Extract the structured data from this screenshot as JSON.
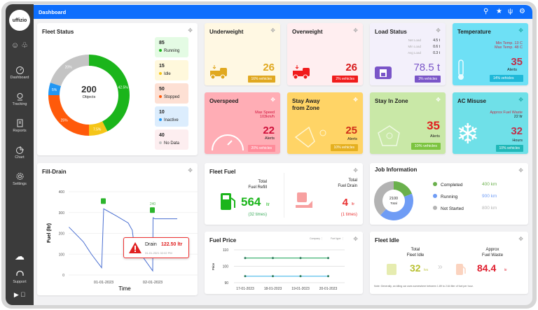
{
  "app": {
    "logo": "uffizio",
    "title": "Dashboard",
    "brand_color": "#0d6efd"
  },
  "sidebar": {
    "items": [
      {
        "label": "Dashboard",
        "icon": "speedometer-icon"
      },
      {
        "label": "Tracking",
        "icon": "location-pin-icon"
      },
      {
        "label": "Reports",
        "icon": "report-icon"
      },
      {
        "label": "Chart",
        "icon": "pie-chart-icon"
      },
      {
        "label": "Settings",
        "icon": "gear-icon"
      }
    ],
    "support": "Support"
  },
  "fleet_status": {
    "title": "Fleet Status",
    "total": "200",
    "total_label": "Objects",
    "items": [
      {
        "count": "85",
        "label": "Running",
        "pct": 42.5,
        "pct_label": "42.5%",
        "color": "#1bb51b",
        "bg": "#e4fbe4"
      },
      {
        "count": "15",
        "label": "Idle",
        "pct": 7.5,
        "pct_label": "7.5%",
        "color": "#f5c518",
        "bg": "#fff8dc"
      },
      {
        "count": "50",
        "label": "Stopped",
        "pct": 25,
        "pct_label": "25%",
        "color": "#ff5a0a",
        "bg": "#fde0d4"
      },
      {
        "count": "10",
        "label": "Inactive",
        "pct": 5,
        "pct_label": "5%",
        "color": "#2196f3",
        "bg": "#dcedfd"
      },
      {
        "count": "40",
        "label": "No Data",
        "pct": 20,
        "pct_label": "20%",
        "color": "#c4c4c4",
        "bg": "#fdeef0"
      }
    ]
  },
  "underweight": {
    "title": "Underweight",
    "value": "26",
    "badge": "16% vehicles"
  },
  "overweight": {
    "title": "Overweight",
    "value": "26",
    "badge": "2% vehicles"
  },
  "load_status": {
    "title": "Load Status",
    "rows": [
      {
        "label": "Net Load",
        "value": "4.5 t"
      },
      {
        "label": "Min Load",
        "value": "0.6 t"
      },
      {
        "label": "Avg Load",
        "value": "0.3 t"
      }
    ],
    "value": "78.5 t",
    "badge": "3% vehicles"
  },
  "temperature": {
    "title": "Temperature",
    "min": "Min Temp. 13 C",
    "max": "Max Temp. 48 C",
    "value": "35",
    "unit": "Alerts",
    "badge": "14% vehicles"
  },
  "overspeed": {
    "title": "Overspeed",
    "note1": "Max Speed",
    "note2": "103km/h",
    "value": "22",
    "unit": "Alerts",
    "badge": "20% vehicles"
  },
  "stay_away": {
    "title1": "Stay Away",
    "title2": "from Zone",
    "value": "25",
    "unit": "Alerts",
    "badge": "10% vehicles"
  },
  "stay_in": {
    "title": "Stay In Zone",
    "value": "35",
    "unit": "Alerts",
    "badge": "10% vehicles"
  },
  "ac_misuse": {
    "title": "AC Misuse",
    "note1": "Approx Fuel Waste",
    "note2": "22 ltr",
    "value": "32",
    "unit": "Hours",
    "badge": "10% vehicles"
  },
  "fleet_fuel": {
    "title": "Fleet Fuel",
    "refill_label1": "Total",
    "refill_label2": "Fuel Refill",
    "refill_value": "564",
    "refill_unit": "ltr",
    "refill_times": "(32 times)",
    "drain_label1": "Total",
    "drain_label2": "Fuel Drain",
    "drain_value": "4",
    "drain_unit": "ltr",
    "drain_times": "(1 times)"
  },
  "job_info": {
    "title": "Job Information",
    "total": "2100",
    "total_label": "Total",
    "items": [
      {
        "label": "Completed",
        "value": "400 km",
        "km": 400,
        "color": "#6ab04c"
      },
      {
        "label": "Running",
        "value": "900 km",
        "km": 900,
        "color": "#6f9cf5"
      },
      {
        "label": "Not Started",
        "value": "800 km",
        "km": 800,
        "color": "#b3b3b3"
      }
    ]
  },
  "fleet_idle": {
    "title": "Fleet Idle",
    "idle_label1": "Total",
    "idle_label2": "Fleet Idle",
    "idle_value": "32",
    "idle_unit": "hrs",
    "waste_label1": "Approx",
    "waste_label2": "Fuel Waste",
    "waste_value": "84.4",
    "waste_unit": "ltr",
    "note": "Note: Generally, an idling car uses somewhere between 1.89 to 2.64 liter of fuel per hour."
  },
  "chart_data": [
    {
      "type": "line",
      "title": "Fill-Drain",
      "xlabel": "Time",
      "ylabel": "Fuel (ltr)",
      "ylim": [
        0,
        400
      ],
      "yticks": [
        "0",
        "100",
        "200",
        "300",
        "400"
      ],
      "xticks": [
        "01-01-2023",
        "02-01-2023"
      ],
      "series": [
        {
          "color": "#4a6fd1",
          "points": [
            [
              "31-12-2022 07:00",
              230
            ],
            [
              "31-12-2022 12:00",
              180
            ],
            [
              "31-12-2022 14:00",
              160
            ],
            [
              "31-12-2022 18:00",
              100
            ],
            [
              "31-12-2022 23:00",
              35
            ],
            [
              "01-01-2023 00:00",
              318
            ],
            [
              "01-01-2023 06:00",
              285
            ],
            [
              "01-01-2023 12:00",
              250
            ],
            [
              "01-01-2023 14:00",
              215
            ],
            [
              "01-01-2023 15:00",
              135
            ],
            [
              "01-01-2023 16:00",
              130
            ],
            [
              "02-01-2023 00:00",
              20
            ],
            [
              "02-01-2023 00:10",
              275
            ],
            [
              "02-01-2023 01:00",
              270
            ],
            [
              "02-01-2023 12:00",
              270
            ]
          ]
        }
      ],
      "annotations": {
        "fill_label": "240",
        "drain_title": "Drain",
        "drain_value": "122.50 ltr",
        "drain_time": "31-01-2021 02:02 PM"
      }
    },
    {
      "type": "line",
      "title": "Fuel Price",
      "ylabel": "Price",
      "ylim": [
        90,
        110
      ],
      "yticks": [
        "90",
        "100",
        "110"
      ],
      "categories": [
        "17-01-2023",
        "18-01-2023",
        "19-01-2023",
        "20-01-2023"
      ],
      "filters": [
        "Company",
        "Fuel type"
      ],
      "series": [
        {
          "color": "#3cb371",
          "values": [
            105,
            105,
            105,
            105
          ]
        },
        {
          "color": "#5bc0eb",
          "values": [
            94,
            94,
            94,
            94
          ]
        }
      ]
    }
  ]
}
